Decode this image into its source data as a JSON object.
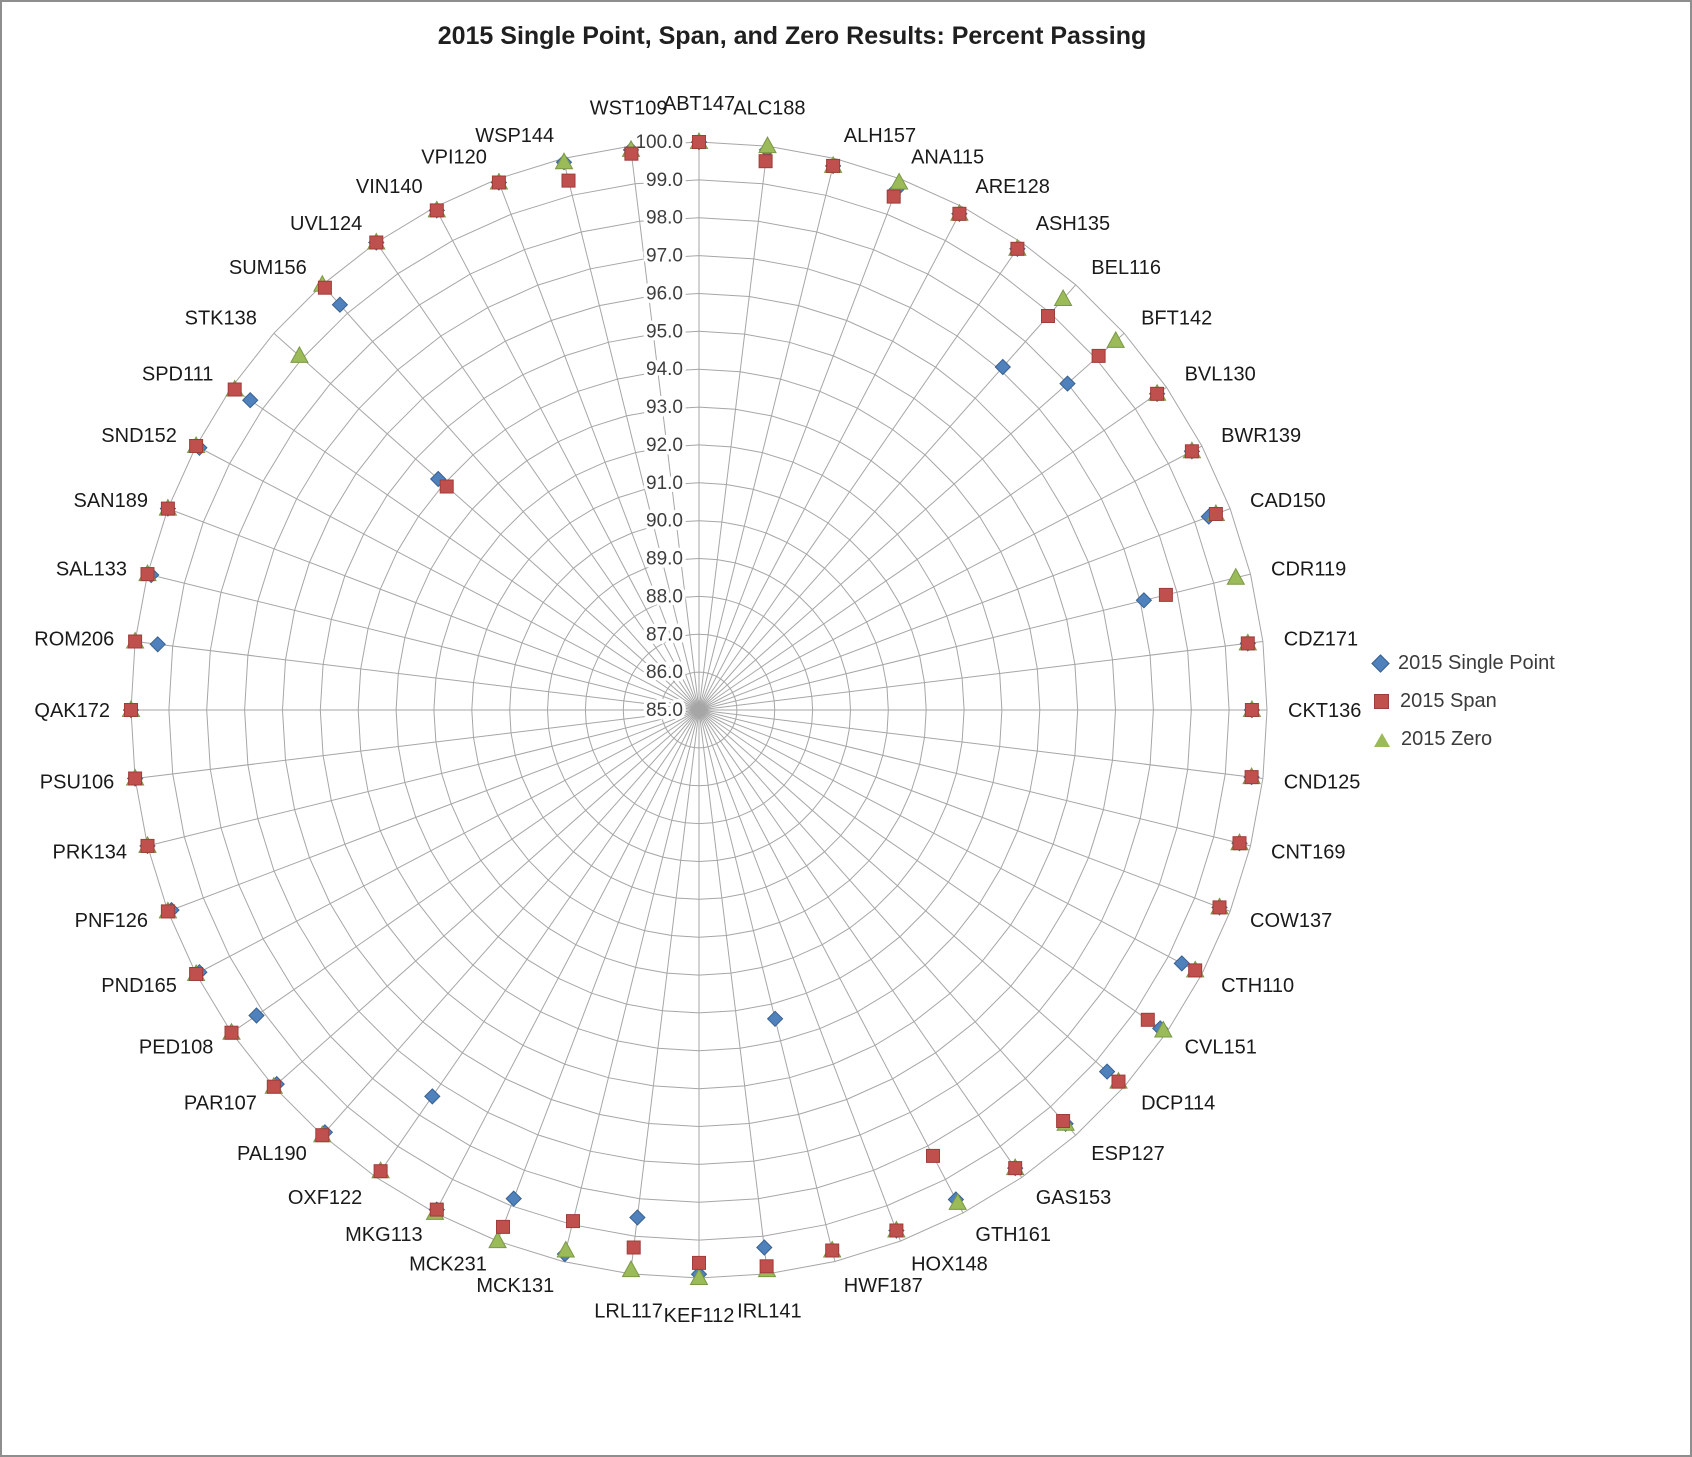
{
  "chart_data": {
    "type": "scatter",
    "subtype": "radar-polar",
    "title": "2015 Single Point, Span, and Zero Results: Percent Passing",
    "grid": true,
    "grid_color": "#a6a6a6",
    "legend_position": "right",
    "radial_axis": {
      "min": 85,
      "max": 100,
      "step": 1,
      "tick_labels": [
        "85.0",
        "86.0",
        "87.0",
        "88.0",
        "89.0",
        "90.0",
        "91.0",
        "92.0",
        "93.0",
        "94.0",
        "95.0",
        "96.0",
        "97.0",
        "98.0",
        "99.0",
        "100.0"
      ]
    },
    "categories": [
      "ABT147",
      "ALC188",
      "ALH157",
      "ANA115",
      "ARE128",
      "ASH135",
      "BEL116",
      "BFT142",
      "BVL130",
      "BWR139",
      "CAD150",
      "CDR119",
      "CDZ171",
      "CKT136",
      "CND125",
      "CNT169",
      "COW137",
      "CTH110",
      "CVL151",
      "DCP114",
      "ESP127",
      "GAS153",
      "GTH161",
      "HOX148",
      "HWF187",
      "IRL141",
      "KEF112",
      "LRL117",
      "MCK131",
      "MCK231",
      "MKG113",
      "OXF122",
      "PAL190",
      "PAR107",
      "PED108",
      "PND165",
      "PNF126",
      "PRK134",
      "PSU106",
      "QAK172",
      "ROM206",
      "SAL133",
      "SAN189",
      "SND152",
      "SPD111",
      "STK138",
      "SUM156",
      "UVL124",
      "VIN140",
      "VPI120",
      "WSP144",
      "WST109"
    ],
    "series": [
      {
        "name": "2015 Single Point",
        "marker": "diamond",
        "color": "#4F81BD",
        "border": "#39618f",
        "values": [
          100.0,
          99.9,
          99.8,
          99.7,
          99.8,
          99.8,
          97.1,
          98.0,
          99.7,
          99.7,
          99.4,
          97.1,
          99.6,
          99.6,
          99.7,
          99.7,
          99.7,
          99.4,
          99.8,
          99.4,
          99.6,
          99.7,
          99.6,
          99.7,
          93.4,
          99.3,
          99.9,
          98.5,
          99.8,
          98.8,
          99.9,
          97.4,
          99.9,
          99.9,
          99.2,
          99.9,
          99.9,
          100.0,
          100.0,
          100.0,
          99.4,
          99.9,
          100.0,
          99.9,
          99.4,
          94.2,
          99.3,
          100.0,
          99.9,
          99.9,
          99.9,
          99.9
        ]
      },
      {
        "name": "2015 Span",
        "marker": "square",
        "color": "#C0504D",
        "border": "#9e3d3a",
        "values": [
          100.0,
          99.6,
          99.8,
          99.5,
          99.8,
          99.8,
          98.9,
          99.1,
          99.7,
          99.7,
          99.6,
          97.7,
          99.6,
          99.6,
          99.7,
          99.7,
          99.7,
          99.8,
          99.4,
          99.8,
          99.5,
          99.7,
          98.3,
          99.7,
          99.7,
          99.8,
          99.6,
          99.3,
          98.9,
          99.6,
          99.9,
          99.8,
          100.0,
          100.0,
          100.0,
          100.0,
          100.0,
          100.0,
          100.0,
          100.0,
          100.0,
          100.0,
          100.0,
          100.0,
          99.9,
          93.9,
          99.9,
          100.0,
          99.9,
          99.9,
          99.4,
          99.8
        ]
      },
      {
        "name": "2015 Zero",
        "marker": "triangle",
        "color": "#9BBB59",
        "border": "#7a9847",
        "values": [
          100.0,
          100.0,
          99.8,
          99.9,
          99.8,
          99.8,
          99.5,
          99.7,
          99.7,
          99.7,
          99.6,
          99.6,
          99.6,
          99.6,
          99.7,
          99.7,
          99.7,
          99.8,
          99.9,
          99.8,
          99.6,
          99.7,
          99.7,
          99.7,
          99.7,
          99.9,
          100.0,
          99.9,
          99.7,
          100.0,
          100.0,
          99.8,
          100.0,
          100.0,
          100.0,
          100.0,
          100.0,
          100.0,
          100.0,
          100.0,
          100.0,
          100.0,
          100.0,
          100.0,
          99.9,
          99.1,
          100.0,
          100.0,
          99.9,
          99.9,
          99.9,
          99.9
        ]
      }
    ]
  }
}
